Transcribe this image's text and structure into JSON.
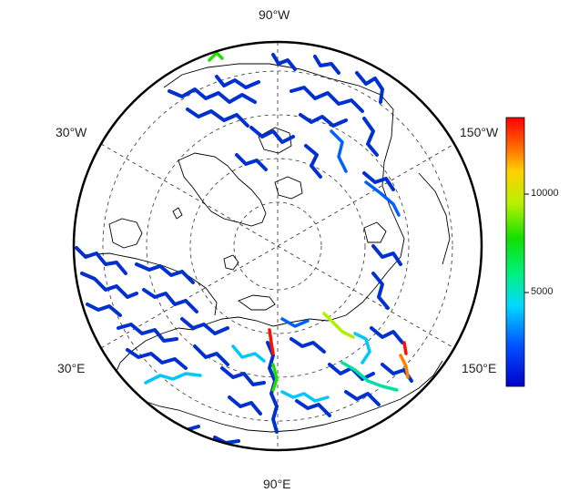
{
  "map": {
    "projection": "north polar stereographic",
    "graticule": "dashed",
    "longitude_labels": [
      {
        "id": "90w",
        "text": "90°W"
      },
      {
        "id": "30w",
        "text": "30°W"
      },
      {
        "id": "150w",
        "text": "150°W"
      },
      {
        "id": "30e",
        "text": "30°E"
      },
      {
        "id": "150e",
        "text": "150°E"
      },
      {
        "id": "90e",
        "text": "90°E"
      }
    ]
  },
  "colorbar": {
    "colors": [
      "#0000c8",
      "#0050ff",
      "#00d8ff",
      "#00f080",
      "#10e000",
      "#b8f000",
      "#ffd000",
      "#ff6000",
      "#ff0000"
    ],
    "ticks": [
      {
        "value": 10000,
        "label": "10000"
      },
      {
        "value": 5000,
        "label": "5000"
      }
    ]
  }
}
